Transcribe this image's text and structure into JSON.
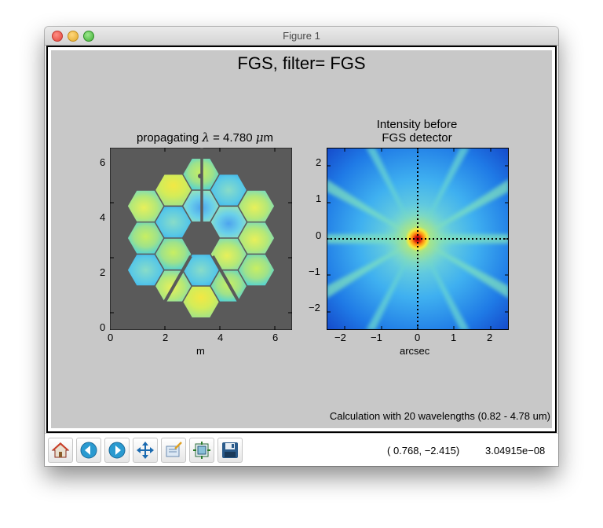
{
  "window": {
    "title": "Figure 1"
  },
  "figure": {
    "suptitle": "FGS, filter= FGS",
    "caption": "Calculation with 20 wavelengths (0.82 - 4.78 um)",
    "left_plot": {
      "title_prefix": "propagating ",
      "title_lambda": "λ",
      "title_eq": " = ",
      "title_value": "4.780 ",
      "title_mu": "μ",
      "title_unit": "m",
      "xlabel": "m",
      "xticks": [
        "0",
        "2",
        "4",
        "6"
      ],
      "yticks": [
        "0",
        "2",
        "4",
        "6"
      ]
    },
    "right_plot": {
      "title_line1": "Intensity before",
      "title_line2": "FGS detector",
      "xlabel": "arcsec",
      "xticks": [
        "−2",
        "−1",
        "0",
        "1",
        "2"
      ],
      "yticks": [
        "−2",
        "−1",
        "0",
        "1",
        "2"
      ]
    }
  },
  "chart_data": [
    {
      "type": "heatmap",
      "title": "propagating λ = 4.780 μm",
      "xlabel": "m",
      "ylabel": "",
      "xlim": [
        0,
        6.6
      ],
      "ylim": [
        0,
        6.6
      ],
      "description_values": "wavefront phase over 18 hexagonal mirror segments",
      "colormap": "jet",
      "background": "#5a5a5a"
    },
    {
      "type": "heatmap",
      "title": "Intensity before FGS detector",
      "xlabel": "arcsec",
      "ylabel": "",
      "xlim": [
        -2.5,
        2.5
      ],
      "ylim": [
        -2.5,
        2.5
      ],
      "colormap": "jet",
      "grid": "dotted crosshair at 0,0"
    }
  ],
  "toolbar": {
    "buttons": [
      {
        "name": "home-button",
        "icon": "home-icon"
      },
      {
        "name": "back-button",
        "icon": "back-arrow-icon"
      },
      {
        "name": "forward-button",
        "icon": "forward-arrow-icon"
      },
      {
        "name": "pan-button",
        "icon": "pan-arrows-icon"
      },
      {
        "name": "zoom-button",
        "icon": "zoom-rect-icon"
      },
      {
        "name": "subplots-button",
        "icon": "subplots-icon"
      },
      {
        "name": "save-button",
        "icon": "floppy-disk-icon"
      }
    ],
    "coords": "( 0.768, −2.415)",
    "value": "3.04915e−08"
  }
}
